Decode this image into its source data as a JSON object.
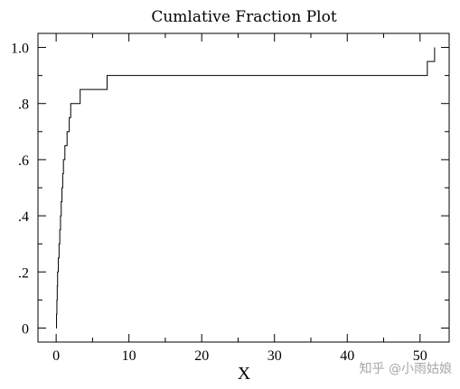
{
  "chart_data": {
    "type": "line",
    "step": true,
    "title": "Cumlative Fraction Plot",
    "xlabel": "X",
    "ylabel": "",
    "xlim": [
      -2.5,
      54
    ],
    "ylim": [
      -0.05,
      1.05
    ],
    "x_ticks": [
      0,
      10,
      20,
      30,
      40,
      50
    ],
    "x_tick_labels": [
      "0",
      "10",
      "20",
      "30",
      "40",
      "50"
    ],
    "y_ticks": [
      0,
      0.2,
      0.4,
      0.6,
      0.8,
      1.0
    ],
    "y_tick_labels": [
      "0",
      ".2",
      ".4",
      ".6",
      ".8",
      "1.0"
    ],
    "x_minor_step": 5,
    "y_minor_step": 0.1,
    "grid": false,
    "series": [
      {
        "x": [
          0,
          0.05,
          0.1,
          0.15,
          0.2,
          0.3,
          0.4,
          0.5,
          0.6,
          0.7,
          0.8,
          0.9,
          1.0,
          1.2,
          1.5,
          1.8,
          2.0,
          3.3,
          7.0,
          51.0,
          52.0
        ],
        "y": [
          0,
          0.05,
          0.1,
          0.15,
          0.2,
          0.25,
          0.3,
          0.35,
          0.4,
          0.45,
          0.5,
          0.55,
          0.6,
          0.65,
          0.7,
          0.75,
          0.8,
          0.85,
          0.9,
          0.95,
          1.0
        ]
      }
    ]
  },
  "watermark": "知乎 @小雨姑娘"
}
